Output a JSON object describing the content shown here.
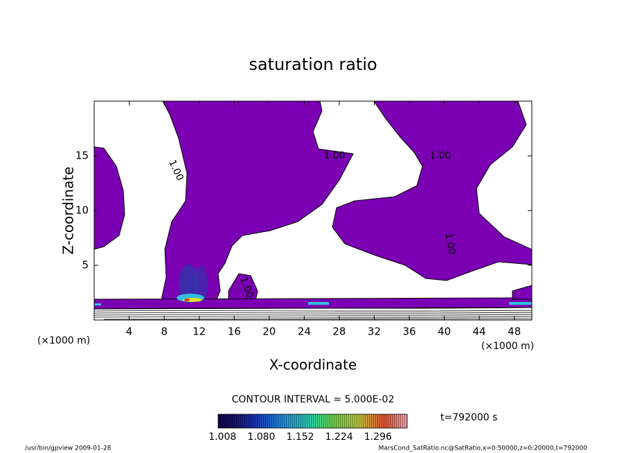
{
  "chart_data": {
    "type": "contour",
    "title": "saturation ratio",
    "x_label": "X-coordinate",
    "y_label": "Z-coordinate",
    "x_unit_left": "(×1000 m)",
    "x_unit_right": "(×1000 m)",
    "xlim": [
      0,
      50
    ],
    "ylim": [
      0,
      20
    ],
    "xticks": [
      4,
      8,
      12,
      16,
      20,
      24,
      28,
      32,
      36,
      40,
      44,
      48
    ],
    "yticks": [
      5,
      10,
      15
    ],
    "contour_labels": [
      "1.00",
      "1.00",
      "1.00",
      "1.00",
      "1.00"
    ],
    "contour_interval": "CONTOUR INTERVAL = 5.000E-02",
    "colorbar": {
      "lim": [
        1.0,
        1.35
      ],
      "ticks": [
        1.008,
        {
          "value": 1.08,
          "label": "1.080"
        },
        1.152,
        1.224,
        1.296
      ]
    },
    "time_label": "t=792000 s",
    "footer_left": "/usr/bin/gpview  2009-01-28",
    "footer_right": "MarsCond_SatRatio.nc@SatRatio,x=0:50000,z=0:20000,t=792000",
    "fill_color": "#7b00b4"
  }
}
